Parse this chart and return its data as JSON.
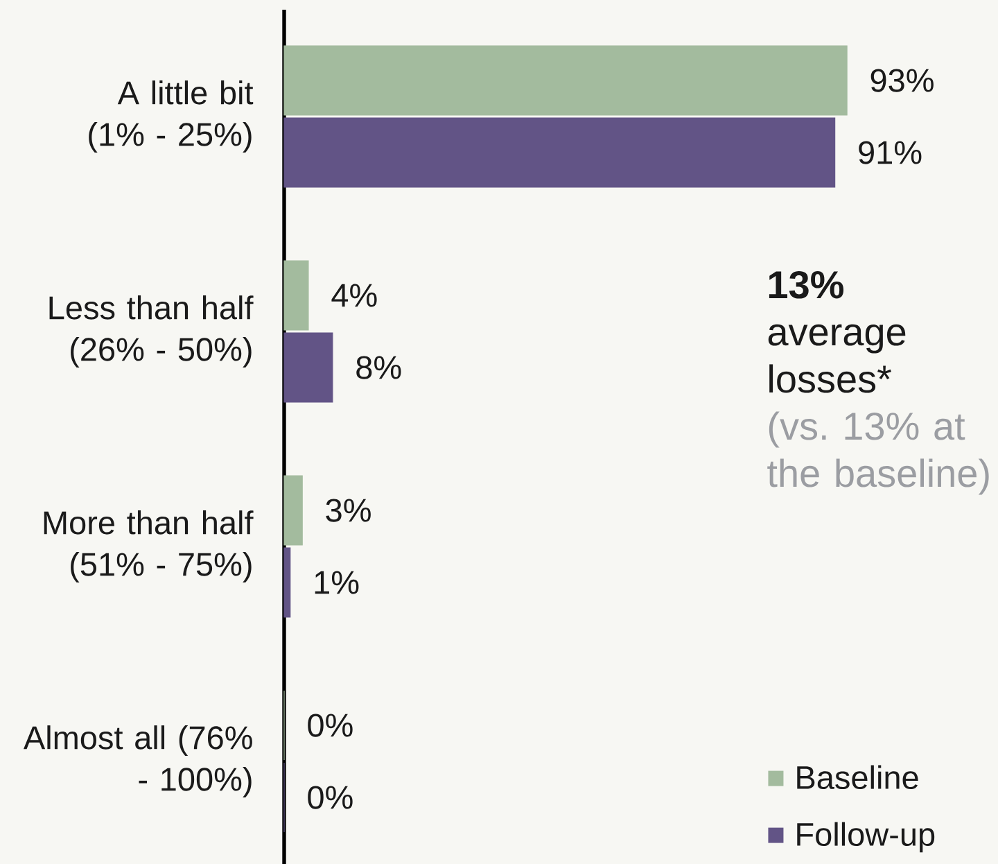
{
  "chart_data": {
    "type": "bar",
    "orientation": "horizontal",
    "categories": [
      "A little bit\n(1% - 25%)",
      "Less than half\n(26% - 50%)",
      "More than half\n(51% - 75%)",
      "Almost all (76%\n- 100%)"
    ],
    "series": [
      {
        "name": "Baseline",
        "color": "#a3bb9e",
        "values": [
          93,
          4,
          3,
          0
        ],
        "value_labels": [
          "93%",
          "4%",
          "3%",
          "0%"
        ]
      },
      {
        "name": "Follow-up",
        "color": "#625486",
        "values": [
          91,
          8,
          1,
          0
        ],
        "value_labels": [
          "91%",
          "8%",
          "1%",
          "0%"
        ]
      }
    ],
    "annotations": [
      "**13%**\naverage\nlosses*",
      "(vs. 13% at\nthe baseline)"
    ],
    "legend": "bottom right"
  }
}
